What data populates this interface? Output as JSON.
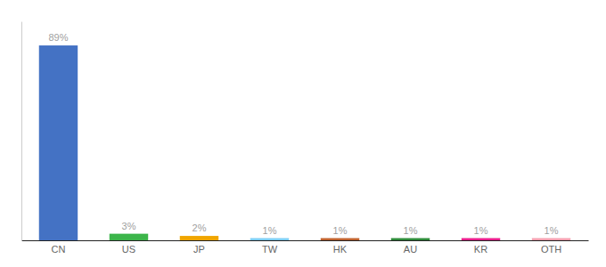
{
  "chart_data": {
    "type": "bar",
    "categories": [
      "CN",
      "US",
      "JP",
      "TW",
      "HK",
      "AU",
      "KR",
      "OTH"
    ],
    "values": [
      89,
      3,
      2,
      1,
      1,
      1,
      1,
      1
    ],
    "value_labels": [
      "89%",
      "3%",
      "2%",
      "1%",
      "1%",
      "1%",
      "1%",
      "1%"
    ],
    "colors": [
      "#4472c4",
      "#3cb54a",
      "#f0a500",
      "#7ecef4",
      "#c0622e",
      "#2e8b3a",
      "#e91e8c",
      "#f4a0b0"
    ],
    "ylim": [
      0,
      100
    ],
    "data_labels": true,
    "tick_labels": "x"
  }
}
